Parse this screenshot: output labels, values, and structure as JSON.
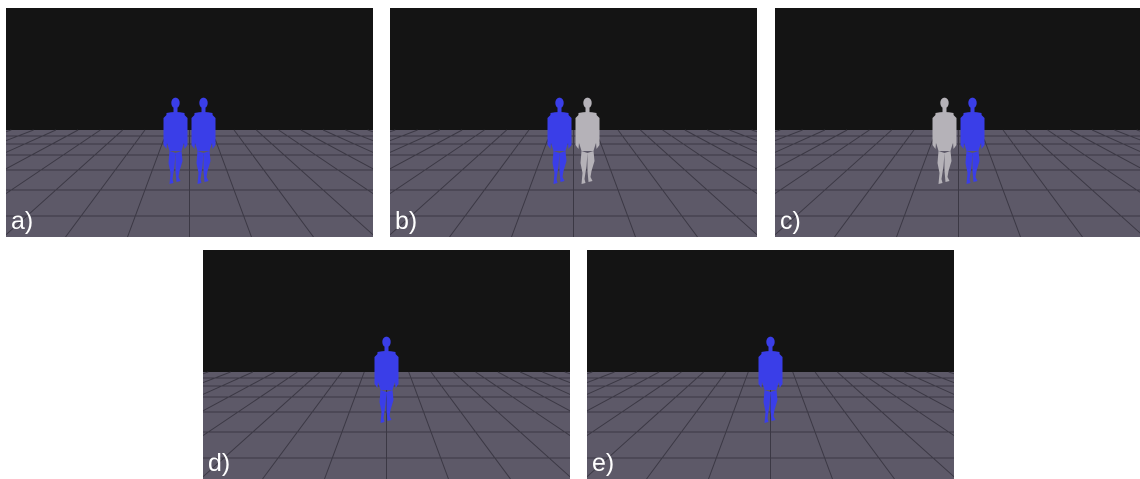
{
  "colors": {
    "sky": "#141414",
    "floor": "#5d5968",
    "grid_line": "#3b3844",
    "avatar_primary": "#3a3ee8",
    "avatar_secondary": "#b5b2b8"
  },
  "panels": [
    {
      "label": "a)",
      "figures": [
        "avatar_primary",
        "avatar_primary"
      ]
    },
    {
      "label": "b)",
      "figures": [
        "avatar_primary",
        "avatar_secondary"
      ]
    },
    {
      "label": "c)",
      "figures": [
        "avatar_secondary",
        "avatar_primary"
      ]
    },
    {
      "label": "d)",
      "figures": [
        "avatar_primary"
      ]
    },
    {
      "label": "e)",
      "figures": [
        "avatar_primary"
      ]
    }
  ]
}
